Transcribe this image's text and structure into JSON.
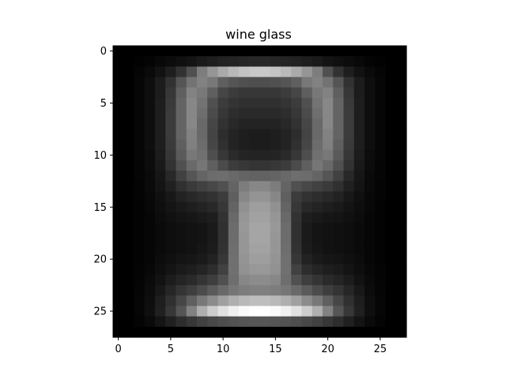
{
  "chart_data": {
    "type": "heatmap",
    "title": "wine glass",
    "xlabel": "",
    "ylabel": "",
    "colormap": "gray",
    "grid": false,
    "rows": 28,
    "cols": 28,
    "x_ticks": [
      0,
      5,
      10,
      15,
      20,
      25
    ],
    "y_ticks": [
      0,
      5,
      10,
      15,
      20,
      25
    ],
    "x_tick_labels": [
      "0",
      "5",
      "10",
      "15",
      "20",
      "25"
    ],
    "y_tick_labels": [
      "0",
      "5",
      "10",
      "15",
      "20",
      "25"
    ],
    "xlim": [
      -0.5,
      27.5
    ],
    "ylim": [
      27.5,
      -0.5
    ],
    "vmin": 0,
    "vmax": 255,
    "row_profiles": [
      [
        0,
        0,
        0,
        0,
        0,
        0,
        0,
        0,
        0,
        0,
        0,
        0,
        0,
        0
      ],
      [
        0,
        0,
        2,
        4,
        8,
        12,
        16,
        20,
        26,
        30,
        34,
        36,
        38,
        40
      ],
      [
        0,
        0,
        5,
        10,
        18,
        30,
        50,
        80,
        125,
        150,
        170,
        185,
        195,
        200
      ],
      [
        0,
        0,
        6,
        14,
        28,
        50,
        85,
        115,
        130,
        120,
        95,
        85,
        80,
        78
      ],
      [
        0,
        0,
        6,
        14,
        28,
        55,
        95,
        130,
        120,
        95,
        70,
        60,
        55,
        55
      ],
      [
        0,
        0,
        6,
        14,
        30,
        58,
        100,
        135,
        115,
        80,
        60,
        52,
        48,
        48
      ],
      [
        0,
        0,
        6,
        14,
        30,
        60,
        100,
        135,
        110,
        75,
        55,
        45,
        42,
        42
      ],
      [
        0,
        0,
        6,
        14,
        30,
        60,
        100,
        135,
        105,
        70,
        50,
        40,
        35,
        35
      ],
      [
        0,
        0,
        6,
        14,
        30,
        60,
        100,
        130,
        105,
        68,
        45,
        35,
        30,
        28
      ],
      [
        0,
        0,
        6,
        14,
        30,
        58,
        95,
        128,
        108,
        70,
        48,
        35,
        30,
        28
      ],
      [
        0,
        0,
        6,
        12,
        28,
        55,
        90,
        120,
        112,
        78,
        55,
        42,
        36,
        35
      ],
      [
        0,
        0,
        5,
        12,
        25,
        50,
        80,
        105,
        118,
        95,
        75,
        60,
        55,
        52
      ],
      [
        0,
        0,
        5,
        10,
        22,
        40,
        65,
        85,
        100,
        108,
        110,
        105,
        100,
        98
      ],
      [
        0,
        0,
        4,
        10,
        20,
        32,
        48,
        58,
        65,
        72,
        80,
        100,
        125,
        135
      ],
      [
        0,
        0,
        4,
        8,
        16,
        24,
        34,
        40,
        45,
        50,
        60,
        95,
        135,
        148
      ],
      [
        0,
        0,
        3,
        8,
        14,
        20,
        26,
        30,
        35,
        40,
        55,
        100,
        145,
        158
      ],
      [
        0,
        0,
        3,
        6,
        12,
        16,
        20,
        22,
        26,
        30,
        50,
        105,
        150,
        162
      ],
      [
        0,
        0,
        3,
        6,
        10,
        14,
        16,
        18,
        20,
        26,
        48,
        108,
        152,
        165
      ],
      [
        0,
        0,
        3,
        6,
        10,
        14,
        16,
        18,
        20,
        26,
        48,
        108,
        150,
        165
      ],
      [
        0,
        0,
        3,
        6,
        10,
        14,
        16,
        18,
        22,
        28,
        50,
        110,
        150,
        162
      ],
      [
        0,
        0,
        3,
        6,
        12,
        16,
        20,
        22,
        26,
        34,
        55,
        112,
        148,
        158
      ],
      [
        0,
        0,
        4,
        8,
        14,
        20,
        26,
        30,
        36,
        45,
        65,
        112,
        145,
        152
      ],
      [
        0,
        0,
        4,
        10,
        18,
        28,
        36,
        42,
        52,
        62,
        80,
        110,
        135,
        140
      ],
      [
        0,
        0,
        5,
        12,
        24,
        38,
        52,
        62,
        75,
        90,
        105,
        118,
        125,
        128
      ],
      [
        0,
        0,
        6,
        14,
        30,
        48,
        70,
        95,
        120,
        140,
        160,
        175,
        185,
        190
      ],
      [
        0,
        0,
        6,
        15,
        32,
        55,
        85,
        130,
        175,
        205,
        225,
        240,
        250,
        255
      ],
      [
        0,
        0,
        4,
        10,
        20,
        32,
        45,
        55,
        65,
        72,
        78,
        82,
        85,
        86
      ],
      [
        0,
        0,
        0,
        0,
        0,
        0,
        0,
        0,
        0,
        0,
        0,
        0,
        0,
        0
      ]
    ]
  }
}
